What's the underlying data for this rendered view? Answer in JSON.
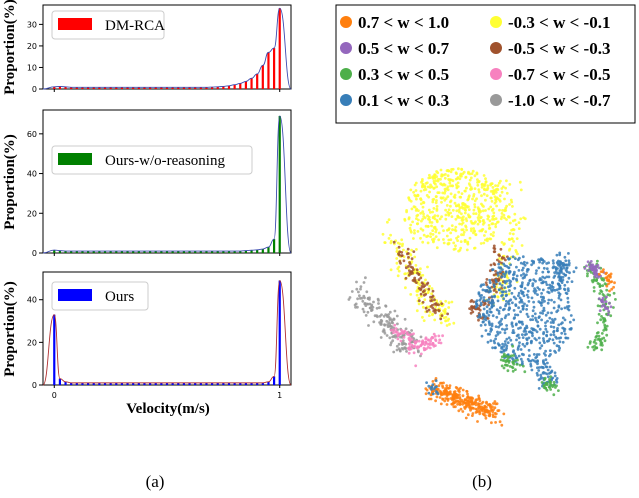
{
  "figure": {
    "panel_a_label": "(a)",
    "panel_b_label": "(b)",
    "shared_xlabel": "Velocity(m/s)",
    "x_tick_labels": [
      "0",
      "1"
    ]
  },
  "chart_data": [
    {
      "type": "bar",
      "panel": "a-top",
      "legend": "DM-RCA",
      "ylabel": "Proportion(%)",
      "color": "#ff0000",
      "curve_color": "#3c4bb0",
      "xlim": [
        -0.05,
        1.05
      ],
      "ylim": [
        0,
        39
      ],
      "yticks": [
        0,
        10,
        20,
        30
      ],
      "x": [
        0.0,
        0.025,
        0.05,
        0.075,
        0.1,
        0.125,
        0.15,
        0.175,
        0.2,
        0.225,
        0.25,
        0.275,
        0.3,
        0.325,
        0.35,
        0.375,
        0.4,
        0.425,
        0.45,
        0.475,
        0.5,
        0.525,
        0.55,
        0.575,
        0.6,
        0.625,
        0.65,
        0.675,
        0.7,
        0.725,
        0.75,
        0.775,
        0.8,
        0.825,
        0.85,
        0.875,
        0.9,
        0.925,
        0.95,
        0.975,
        1.0
      ],
      "values": [
        1,
        1.2,
        1,
        0.8,
        0.8,
        0.8,
        0.8,
        0.8,
        0.8,
        0.8,
        0.8,
        0.8,
        0.8,
        0.8,
        0.8,
        0.8,
        0.8,
        0.8,
        0.8,
        0.8,
        0.8,
        0.8,
        0.8,
        0.8,
        0.8,
        0.8,
        0.8,
        0.8,
        0.9,
        1,
        1.2,
        1.5,
        2,
        2.6,
        3.5,
        5,
        7,
        11,
        17,
        19,
        37.5
      ]
    },
    {
      "type": "bar",
      "panel": "a-mid",
      "legend": "Ours-w/o-reasoning",
      "ylabel": "Proportion(%)",
      "color": "#008000",
      "curve_color": "#3c4bb0",
      "xlim": [
        -0.05,
        1.05
      ],
      "ylim": [
        0,
        72
      ],
      "yticks": [
        0,
        20,
        40,
        60
      ],
      "x": [
        0.0,
        0.025,
        0.05,
        0.075,
        0.1,
        0.125,
        0.15,
        0.175,
        0.2,
        0.225,
        0.25,
        0.275,
        0.3,
        0.325,
        0.35,
        0.375,
        0.4,
        0.425,
        0.45,
        0.475,
        0.5,
        0.525,
        0.55,
        0.575,
        0.6,
        0.625,
        0.65,
        0.675,
        0.7,
        0.725,
        0.75,
        0.775,
        0.8,
        0.825,
        0.85,
        0.875,
        0.9,
        0.925,
        0.95,
        0.975,
        1.0
      ],
      "values": [
        1.5,
        1.2,
        1,
        1,
        1,
        1,
        1,
        1,
        1,
        1,
        1,
        1,
        1,
        1,
        1,
        1,
        1,
        1,
        1,
        1,
        1,
        1,
        1,
        1,
        1,
        1,
        1,
        1,
        1,
        1,
        1,
        1,
        1,
        1,
        1.2,
        1.4,
        1.6,
        2,
        3,
        7,
        69
      ]
    },
    {
      "type": "bar",
      "panel": "a-bottom",
      "legend": "Ours",
      "ylabel": "Proportion(%)",
      "color": "#0000ff",
      "curve_color": "#b03030",
      "xlim": [
        -0.05,
        1.05
      ],
      "ylim": [
        0,
        53
      ],
      "yticks": [
        0,
        20,
        40
      ],
      "x": [
        0.0,
        0.025,
        0.05,
        0.075,
        0.1,
        0.125,
        0.15,
        0.175,
        0.2,
        0.225,
        0.25,
        0.275,
        0.3,
        0.325,
        0.35,
        0.375,
        0.4,
        0.425,
        0.45,
        0.475,
        0.5,
        0.525,
        0.55,
        0.575,
        0.6,
        0.625,
        0.65,
        0.675,
        0.7,
        0.725,
        0.75,
        0.775,
        0.8,
        0.825,
        0.85,
        0.875,
        0.9,
        0.925,
        0.95,
        0.975,
        1.0
      ],
      "values": [
        33,
        3,
        1.5,
        1,
        1,
        1,
        1,
        1,
        1,
        1,
        1,
        1,
        1,
        1,
        1,
        1,
        1,
        1,
        1,
        1,
        1,
        1,
        1,
        1,
        1,
        1,
        1,
        1,
        1,
        1,
        1,
        1,
        1,
        1,
        1,
        1,
        1,
        1,
        1.5,
        4,
        49
      ]
    },
    {
      "type": "scatter",
      "panel": "b",
      "legend_items": [
        {
          "label": "0.7 < w <  1.0",
          "color": "#ff7f0e"
        },
        {
          "label": "-0.3 < w < -0.1",
          "color": "#ffff33"
        },
        {
          "label": "0.5 < w <  0.7",
          "color": "#9467bd"
        },
        {
          "label": "-0.5 < w < -0.3",
          "color": "#a0522d"
        },
        {
          "label": "0.3 < w <  0.5",
          "color": "#4daf4a"
        },
        {
          "label": "-0.7 < w < -0.5",
          "color": "#f781bf"
        },
        {
          "label": "0.1 < w <  0.3",
          "color": "#377eb8"
        },
        {
          "label": "-1.0 < w < -0.7",
          "color": "#999999"
        }
      ]
    }
  ]
}
